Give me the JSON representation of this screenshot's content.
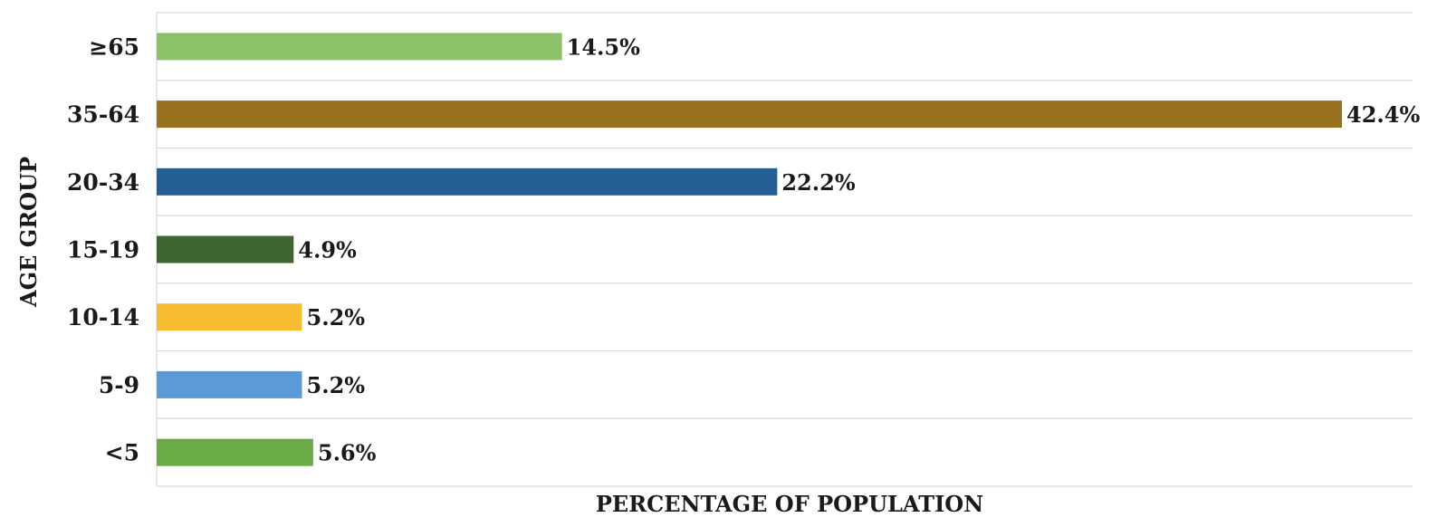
{
  "chart_data": {
    "type": "bar",
    "orientation": "horizontal",
    "title": "",
    "xlabel": "PERCENTAGE OF POPULATION",
    "ylabel": "AGE GROUP",
    "categories": [
      "≥65",
      "35-64",
      "20-34",
      "15-19",
      "10-14",
      "5-9",
      "<5"
    ],
    "values": [
      14.5,
      42.4,
      22.2,
      4.9,
      5.2,
      5.2,
      5.6
    ],
    "value_labels": [
      "14.5%",
      "42.4%",
      "22.2%",
      "4.9%",
      "5.2%",
      "5.2%",
      "5.6%"
    ],
    "colors": [
      "#8cc36a",
      "#98721f",
      "#255f93",
      "#3f662e",
      "#f6bd33",
      "#5c9ad6",
      "#6aab46"
    ],
    "xlim": [
      0,
      45
    ],
    "grid": "horizontal",
    "legend": "none"
  }
}
